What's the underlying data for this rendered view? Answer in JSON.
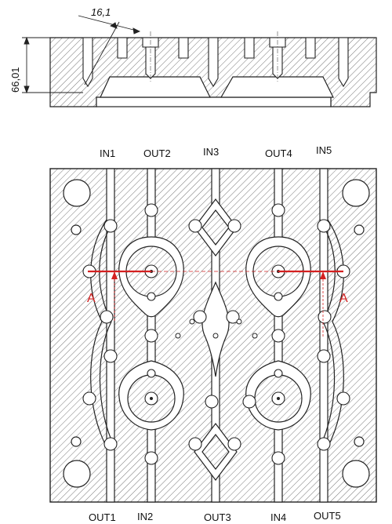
{
  "dimensions": {
    "height_dim": "66,01",
    "angle_dim": "16,1"
  },
  "section_label": "A",
  "top_ports": [
    "IN1",
    "OUT2",
    "IN3",
    "OUT4",
    "IN5"
  ],
  "bottom_ports": [
    "OUT1",
    "IN2",
    "OUT3",
    "IN4",
    "OUT5"
  ],
  "colors": {
    "line": "#222222",
    "hatch": "#555555",
    "section": "#d42020"
  }
}
